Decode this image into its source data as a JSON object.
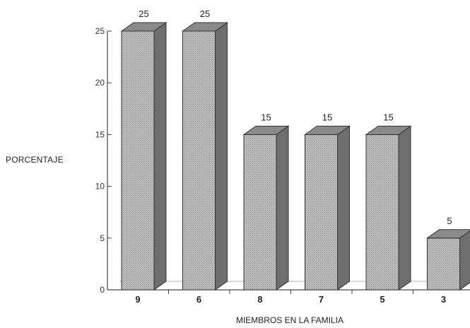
{
  "chart_data": {
    "type": "bar",
    "style": "3d",
    "categories": [
      "9",
      "6",
      "8",
      "7",
      "5",
      "3"
    ],
    "values": [
      25,
      25,
      15,
      15,
      15,
      5
    ],
    "data_labels": [
      "25",
      "25",
      "15",
      "15",
      "15",
      "5"
    ],
    "xlabel": "MIEMBROS EN LA FAMILIA",
    "ylabel": "PORCENTAJE",
    "ylim": [
      0,
      25
    ],
    "yticks": [
      0,
      5,
      10,
      15,
      20,
      25
    ],
    "grid": false,
    "legend": "none",
    "colors": {
      "bar_front": "#b3b3b3",
      "bar_side": "#6e6e6e",
      "bar_top": "#8a8a8a",
      "axis": "#444444"
    }
  }
}
